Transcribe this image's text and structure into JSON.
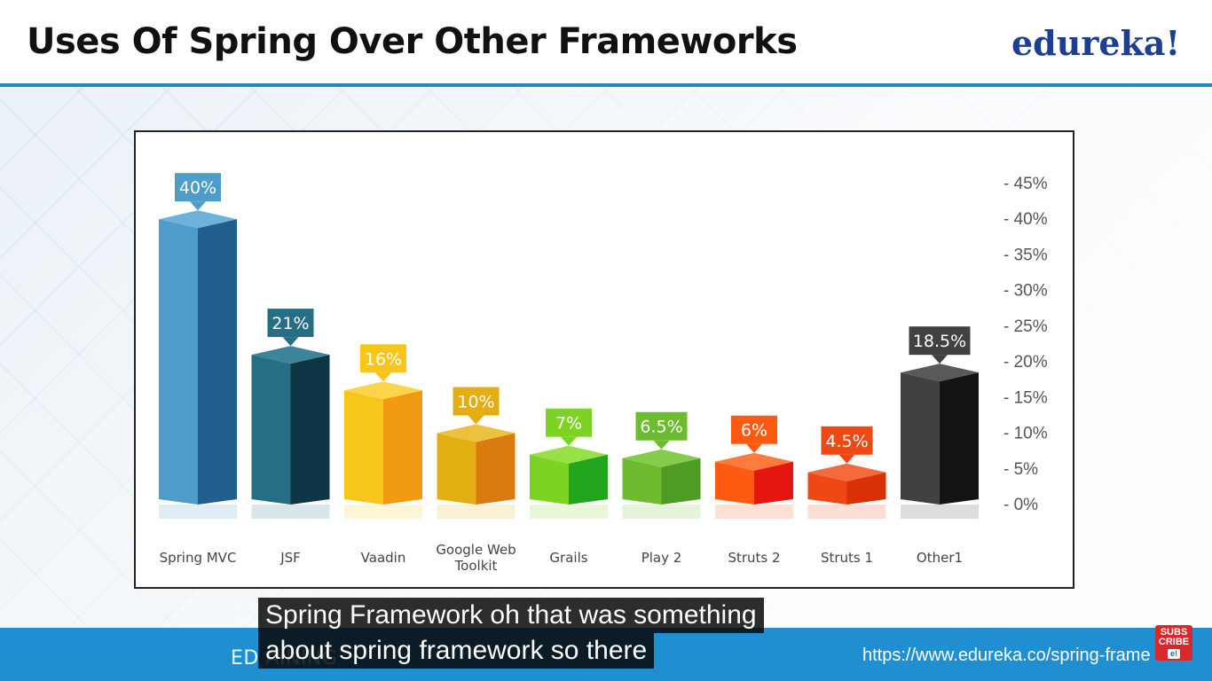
{
  "header": {
    "title": "Uses Of Spring Over Other Frameworks",
    "logo": "edureka!"
  },
  "footer": {
    "left_text": "ED                                                  AINING",
    "url": "https://www.edureka.co/spring-frame ork"
  },
  "caption": {
    "line1": "Spring Framework oh that was something",
    "line2": "about spring framework so there"
  },
  "subscribe": {
    "label_line1": "SUBS",
    "label_line2": "CRIBE",
    "badge": "e!"
  },
  "colors": {
    "accent_blue": "#1a8ac8",
    "footer_blue": "#1f8fd1",
    "logo_blue": "#1d3f8f"
  },
  "chart_data": {
    "type": "bar",
    "title": "",
    "xlabel": "",
    "ylabel": "",
    "ylim": [
      0,
      45
    ],
    "yticks": [
      "0%",
      "5%",
      "10%",
      "15%",
      "20%",
      "25%",
      "30%",
      "35%",
      "40%",
      "45%"
    ],
    "y_axis_position": "right",
    "grid": false,
    "legend": "none",
    "categories": [
      "Spring MVC",
      "JSF",
      "Vaadin",
      "Google Web Toolkit",
      "Grails",
      "Play 2",
      "Struts 2",
      "Struts 1",
      "Other1"
    ],
    "values": [
      40,
      21,
      16,
      10,
      7,
      6.5,
      6,
      4.5,
      18.5
    ],
    "data_labels": [
      "40%",
      "21%",
      "16%",
      "10%",
      "7%",
      "6.5%",
      "6%",
      "4.5%",
      "18.5%"
    ],
    "colors": [
      {
        "front": "#4d9cc9",
        "side": "#215e8c",
        "top": "#6cb2da"
      },
      {
        "front": "#266e83",
        "side": "#0e3647",
        "top": "#3b8499"
      },
      {
        "front": "#f8c51a",
        "side": "#f29a12",
        "top": "#fbd449"
      },
      {
        "front": "#e2ae12",
        "side": "#d97b10",
        "top": "#ecc13e"
      },
      {
        "front": "#7dd321",
        "side": "#22a41e",
        "top": "#97e045"
      },
      {
        "front": "#6dbb2f",
        "side": "#4f9c24",
        "top": "#86cc4c"
      },
      {
        "front": "#ff5a12",
        "side": "#e51610",
        "top": "#ff7a3c"
      },
      {
        "front": "#ee4814",
        "side": "#d93006",
        "top": "#f46a3c"
      },
      {
        "front": "#414141",
        "side": "#141414",
        "top": "#595959"
      }
    ],
    "label_colors": [
      "#4d9cc9",
      "#266e83",
      "#f8c51a",
      "#e2ae12",
      "#7dd321",
      "#6dbb2f",
      "#ff5a12",
      "#ee4814",
      "#414141"
    ]
  }
}
